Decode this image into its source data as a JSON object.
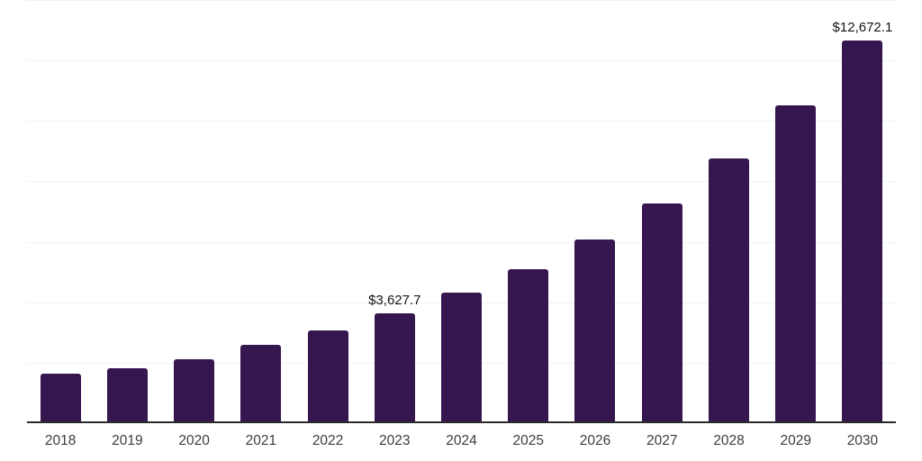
{
  "chart_data": {
    "type": "bar",
    "title": "",
    "xlabel": "",
    "ylabel": "",
    "categories": [
      "2018",
      "2019",
      "2020",
      "2021",
      "2022",
      "2023",
      "2024",
      "2025",
      "2026",
      "2027",
      "2028",
      "2029",
      "2030"
    ],
    "values": [
      1640,
      1820,
      2120,
      2600,
      3080,
      3627.7,
      4330,
      5100,
      6090,
      7280,
      8750,
      10510,
      12672.1
    ],
    "data_labels": {
      "2023": "$3,627.7",
      "2030": "$12,672.1"
    },
    "ylim": [
      0,
      14000
    ],
    "gridline_interval": 2000,
    "grid": true,
    "legend": false,
    "colors": {
      "bar": "#35164f",
      "axis_line": "#2b2b2b",
      "gridline": "#f2f2f2",
      "tick_label": "#3c3c3c",
      "data_label": "#141414",
      "background": "#ffffff"
    }
  }
}
